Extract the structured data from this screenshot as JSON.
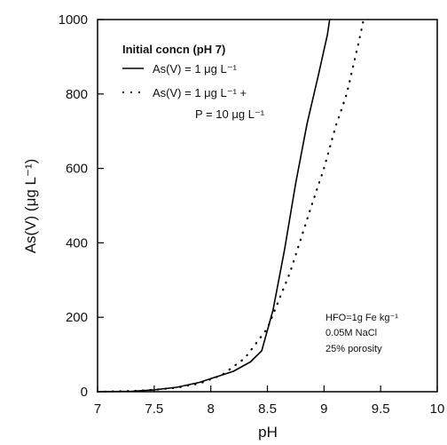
{
  "chart_data": {
    "type": "line",
    "xlabel": "pH",
    "ylabel": "As(V) (μg L⁻¹)",
    "xlim": [
      7,
      10
    ],
    "ylim": [
      0,
      1000
    ],
    "xticks": [
      "7",
      "7.5",
      "8",
      "8.5",
      "9",
      "9.5",
      "10"
    ],
    "yticks": [
      "0",
      "200",
      "400",
      "600",
      "800",
      "1000"
    ],
    "grid": false,
    "legend": {
      "placement": "top-left",
      "title": "Initial concn (pH 7)",
      "entries": [
        {
          "style": "solid",
          "lines": [
            "As(V) = 1 μg L⁻¹"
          ]
        },
        {
          "style": "dotted",
          "lines": [
            "As(V) = 1 μg L⁻¹ +",
            "P = 10 μg L⁻¹"
          ]
        }
      ]
    },
    "annotation": [
      "HFO=1g Fe kg⁻¹",
      "0.05M NaCl",
      "25% porosity"
    ],
    "series": [
      {
        "style": "solid",
        "x": [
          7.0,
          7.3,
          7.5,
          7.7,
          7.9,
          8.0,
          8.2,
          8.35,
          8.45,
          8.55,
          8.65,
          8.75,
          8.85,
          8.95,
          9.03,
          9.05
        ],
        "y": [
          0,
          1,
          5,
          12,
          25,
          35,
          55,
          80,
          110,
          220,
          380,
          560,
          720,
          850,
          960,
          1000
        ]
      },
      {
        "style": "dotted",
        "x": [
          7.0,
          7.3,
          7.5,
          7.7,
          7.9,
          8.1,
          8.3,
          8.5,
          8.7,
          8.9,
          9.0,
          9.1,
          9.2,
          9.3,
          9.35
        ],
        "y": [
          0,
          2,
          5,
          11,
          22,
          45,
          90,
          170,
          320,
          510,
          600,
          710,
          800,
          930,
          1000
        ]
      }
    ]
  }
}
